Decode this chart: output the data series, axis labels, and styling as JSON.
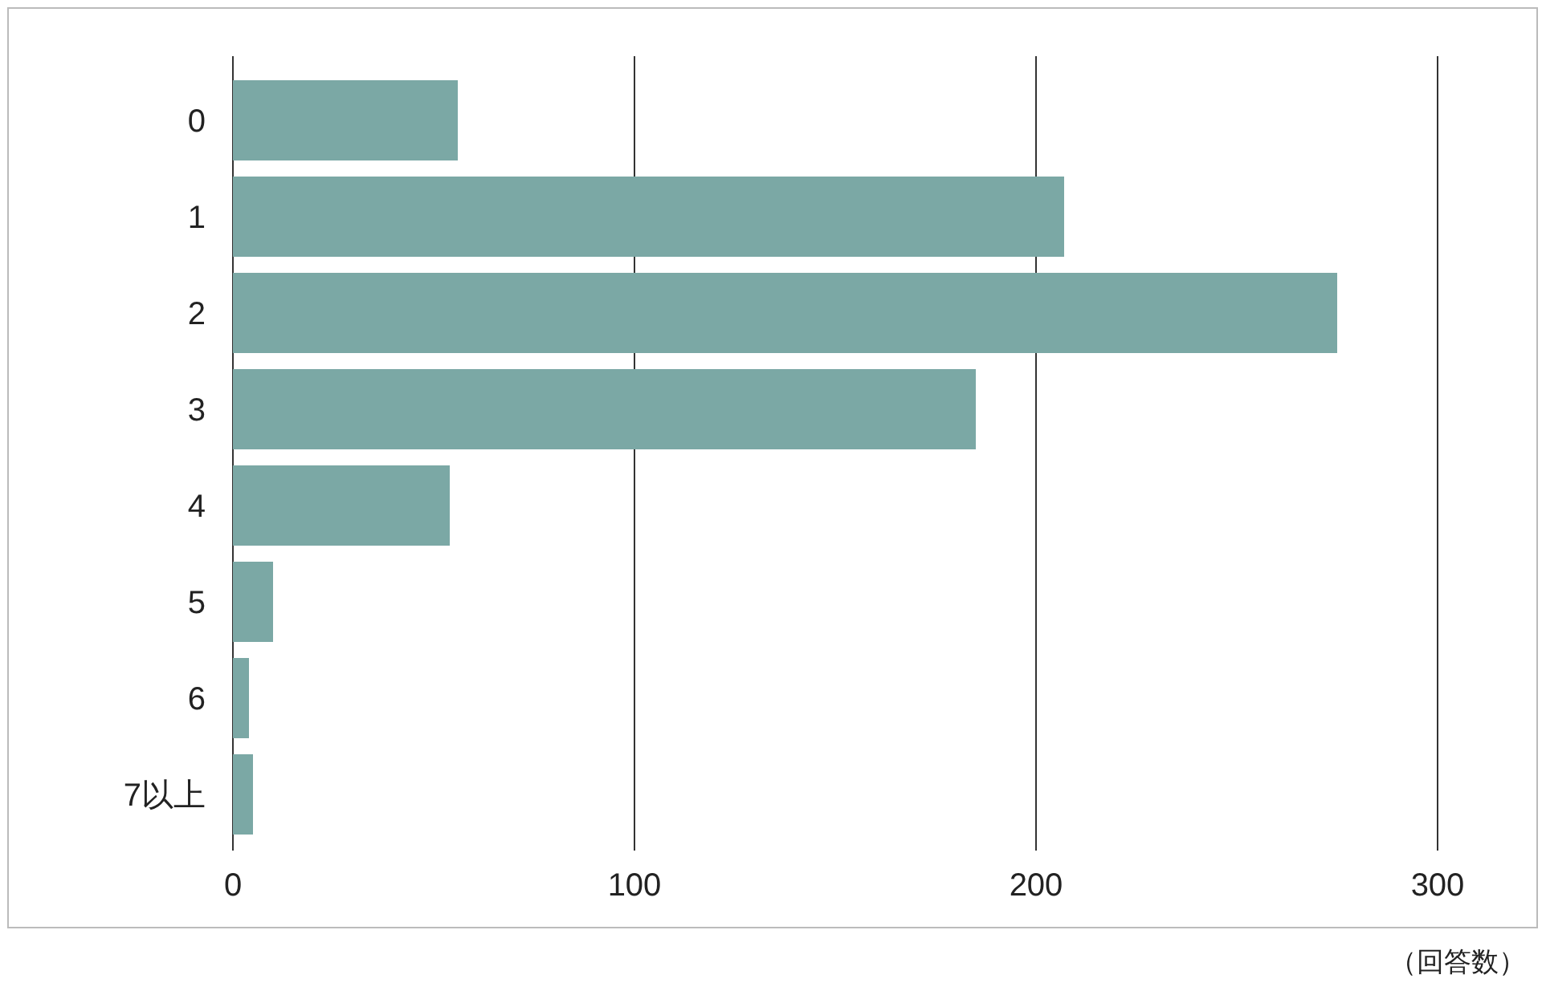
{
  "chart_data": {
    "type": "bar",
    "orientation": "horizontal",
    "categories": [
      "0",
      "1",
      "2",
      "3",
      "4",
      "5",
      "6",
      "7以上"
    ],
    "values": [
      56,
      207,
      275,
      185,
      54,
      10,
      4,
      5
    ],
    "color": "#7ba8a5",
    "xlim": [
      0,
      300
    ],
    "xticks": [
      0,
      100,
      200,
      300
    ],
    "grid": "x",
    "annotations": [
      "（回答数）"
    ]
  }
}
